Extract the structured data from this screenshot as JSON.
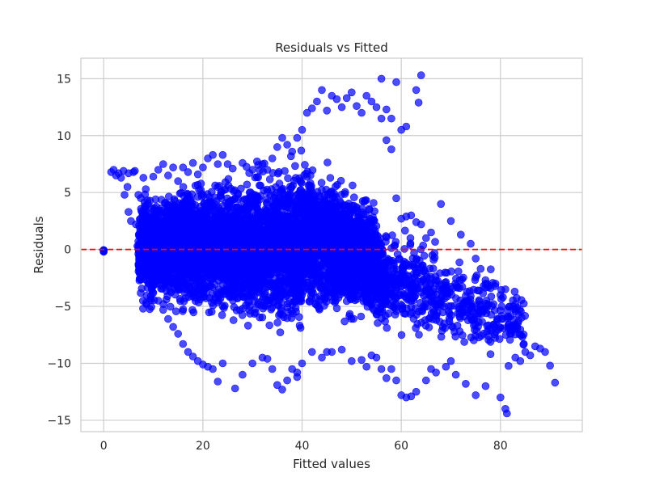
{
  "chart_data": {
    "type": "scatter",
    "title": "Residuals vs Fitted",
    "xlabel": "Fitted values",
    "ylabel": "Residuals",
    "xlim": [
      -4.6,
      96.5
    ],
    "ylim": [
      -16.0,
      16.8
    ],
    "xticks": [
      0,
      20,
      40,
      60,
      80
    ],
    "xtick_labels": [
      "0",
      "20",
      "40",
      "60",
      "80"
    ],
    "yticks": [
      -15,
      -10,
      -5,
      0,
      5,
      10,
      15
    ],
    "ytick_labels": [
      "−15",
      "−10",
      "−5",
      "0",
      "5",
      "10",
      "15"
    ],
    "grid": true,
    "legend": "none",
    "reference_line": {
      "y": 0,
      "style": "dashed",
      "color": "#ff0000"
    },
    "marker_color": "#0000ff",
    "marker_alpha": 0.7,
    "series": [
      {
        "points": [
          [
            0,
            -0.1
          ],
          [
            0,
            -0.15
          ],
          [
            0,
            -0.05
          ],
          [
            0,
            -0.2
          ],
          [
            0,
            -0.1
          ],
          [
            1.5,
            6.8
          ],
          [
            2,
            7.0
          ],
          [
            2.5,
            6.5
          ],
          [
            3,
            6.7
          ],
          [
            3.5,
            6.3
          ],
          [
            4,
            6.9
          ],
          [
            4.2,
            4.8
          ],
          [
            4.8,
            5.5
          ],
          [
            5,
            3.3
          ],
          [
            5.5,
            2.5
          ],
          [
            6,
            6.8
          ],
          [
            6.5,
            2.2
          ],
          [
            6.8,
            0.3
          ],
          [
            7,
            4.8
          ],
          [
            8,
            6.3
          ],
          [
            6.3,
            6.9
          ],
          [
            5,
            6.7
          ],
          [
            8.5,
            5.3
          ],
          [
            9.2,
            2.8
          ],
          [
            10,
            6.4
          ],
          [
            11,
            7.0
          ],
          [
            12,
            7.5
          ],
          [
            13,
            6.5
          ],
          [
            14,
            7.2
          ],
          [
            15,
            6.0
          ],
          [
            16,
            7.2
          ],
          [
            17,
            6.8
          ],
          [
            18,
            7.6
          ],
          [
            19,
            6.6
          ],
          [
            20,
            7.2
          ],
          [
            21,
            8.0
          ],
          [
            22,
            8.3
          ],
          [
            23,
            7.5
          ],
          [
            24,
            8.3
          ],
          [
            25,
            7.5
          ],
          [
            26,
            7.1
          ],
          [
            28,
            7.6
          ],
          [
            30,
            7.0
          ],
          [
            32,
            7.5
          ],
          [
            33,
            7.0
          ],
          [
            34,
            8.0
          ],
          [
            35,
            9.0
          ],
          [
            36,
            9.8
          ],
          [
            37,
            9.2
          ],
          [
            38,
            8.6
          ],
          [
            39,
            9.8
          ],
          [
            40,
            10.5
          ],
          [
            41,
            12.0
          ],
          [
            42,
            12.4
          ],
          [
            43,
            13.0
          ],
          [
            44,
            14.0
          ],
          [
            45,
            12.2
          ],
          [
            46,
            13.5
          ],
          [
            47,
            13.2
          ],
          [
            48,
            12.5
          ],
          [
            49,
            13.3
          ],
          [
            50,
            13.8
          ],
          [
            51,
            12.6
          ],
          [
            52,
            12.0
          ],
          [
            53,
            13.5
          ],
          [
            54,
            13.0
          ],
          [
            55,
            12.5
          ],
          [
            56,
            15.0
          ],
          [
            57,
            12.3
          ],
          [
            58,
            11.5
          ],
          [
            59,
            14.7
          ],
          [
            60,
            10.5
          ],
          [
            61,
            10.8
          ],
          [
            63,
            14.0
          ],
          [
            63.5,
            12.9
          ],
          [
            64,
            15.3
          ],
          [
            56,
            11.5
          ],
          [
            57,
            9.6
          ],
          [
            58,
            8.8
          ],
          [
            59,
            4.5
          ],
          [
            60,
            2.7
          ],
          [
            61,
            2.9
          ],
          [
            62,
            3.0
          ],
          [
            63,
            2.4
          ],
          [
            64,
            2.2
          ],
          [
            65,
            1.0
          ],
          [
            66,
            1.5
          ],
          [
            68,
            4.0
          ],
          [
            70,
            2.5
          ],
          [
            72,
            1.3
          ],
          [
            74,
            0.5
          ],
          [
            75,
            -0.8
          ],
          [
            76,
            -1.7
          ],
          [
            77,
            -3.0
          ],
          [
            78,
            -3.4
          ],
          [
            79,
            -3.0
          ],
          [
            80,
            -4.0
          ],
          [
            80.5,
            -4.2
          ],
          [
            81,
            -3.5
          ],
          [
            82,
            -6.8
          ],
          [
            83,
            -7.0
          ],
          [
            84,
            -9.8
          ],
          [
            85,
            -9.0
          ],
          [
            86,
            -9.3
          ],
          [
            87,
            -8.5
          ],
          [
            88,
            -8.7
          ],
          [
            89,
            -9.0
          ],
          [
            90,
            -10.2
          ],
          [
            91,
            -11.7
          ],
          [
            80,
            -13.0
          ],
          [
            81,
            -14.0
          ],
          [
            81.3,
            -14.4
          ],
          [
            75,
            -12.8
          ],
          [
            77,
            -12.0
          ],
          [
            73,
            -11.8
          ],
          [
            71,
            -11.0
          ],
          [
            69,
            -10.3
          ],
          [
            67,
            -10.8
          ],
          [
            65,
            -11.5
          ],
          [
            63,
            -12.5
          ],
          [
            62,
            -12.9
          ],
          [
            61,
            -13.0
          ],
          [
            60,
            -12.8
          ],
          [
            59,
            -11.5
          ],
          [
            58,
            -10.5
          ],
          [
            57,
            -11.3
          ],
          [
            56,
            -10.5
          ],
          [
            55,
            -9.5
          ],
          [
            54,
            -9.3
          ],
          [
            52,
            -9.7
          ],
          [
            50,
            -9.8
          ],
          [
            48,
            -8.8
          ],
          [
            46,
            -9.0
          ],
          [
            44,
            -9.5
          ],
          [
            42,
            -9.0
          ],
          [
            40,
            -10.0
          ],
          [
            39,
            -10.8
          ],
          [
            38,
            -10.5
          ],
          [
            37,
            -11.5
          ],
          [
            36,
            -12.3
          ],
          [
            35,
            -11.9
          ],
          [
            34,
            -10.5
          ],
          [
            33,
            -9.6
          ],
          [
            32,
            -9.5
          ],
          [
            30,
            -10.0
          ],
          [
            28,
            -11.0
          ],
          [
            26.5,
            -12.2
          ],
          [
            24,
            -10.0
          ],
          [
            23,
            -11.6
          ],
          [
            22,
            -10.5
          ],
          [
            21,
            -10.3
          ],
          [
            20,
            -10.1
          ],
          [
            19,
            -9.8
          ],
          [
            18,
            -9.4
          ],
          [
            17,
            -9.0
          ],
          [
            16,
            -8.3
          ],
          [
            15,
            -7.4
          ],
          [
            14,
            -6.8
          ],
          [
            13,
            -6.1
          ],
          [
            12,
            -5.3
          ],
          [
            11,
            -4.5
          ],
          [
            10,
            -3.8
          ],
          [
            9,
            -3.0
          ],
          [
            8,
            -1.9
          ],
          [
            7,
            -0.4
          ],
          [
            39,
            -11.2
          ],
          [
            45,
            -9.0
          ],
          [
            53,
            -10.3
          ],
          [
            66,
            -10.5
          ],
          [
            70,
            -9.8
          ],
          [
            78,
            -9.2
          ],
          [
            83,
            -9.5
          ]
        ]
      }
    ]
  }
}
